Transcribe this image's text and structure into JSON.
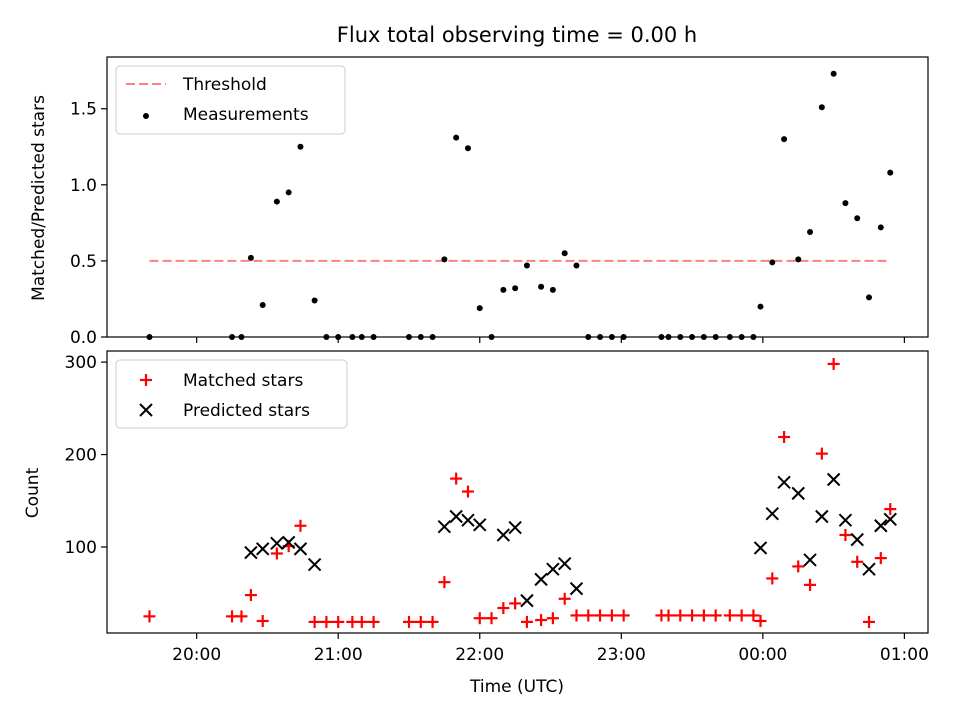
{
  "chart_data": [
    {
      "type": "scatter",
      "title": "Flux total observing time = 0.00 h",
      "ylabel": "Matched/Predicted stars",
      "ylim": [
        0,
        1.84
      ],
      "yticks": [
        "0.0",
        "0.5",
        "1.0",
        "1.5"
      ],
      "legend_placement": "top-left",
      "grid": false,
      "threshold": {
        "name": "Threshold",
        "value": 0.5,
        "x_start": "19:40",
        "x_end": "00:54",
        "color": "#ff8080",
        "style": "dashed"
      },
      "series": [
        {
          "name": "Measurements",
          "color": "#000000",
          "marker": "dot",
          "points": [
            [
              "19:40",
              0.0
            ],
            [
              "20:15",
              0.0
            ],
            [
              "20:19",
              0.0
            ],
            [
              "20:23",
              0.52
            ],
            [
              "20:28",
              0.21
            ],
            [
              "20:34",
              0.89
            ],
            [
              "20:39",
              0.95
            ],
            [
              "20:44",
              1.25
            ],
            [
              "20:50",
              0.24
            ],
            [
              "20:55",
              0.0
            ],
            [
              "21:00",
              0.0
            ],
            [
              "21:06",
              0.0
            ],
            [
              "21:10",
              0.0
            ],
            [
              "21:15",
              0.0
            ],
            [
              "21:30",
              0.0
            ],
            [
              "21:35",
              0.0
            ],
            [
              "21:40",
              0.0
            ],
            [
              "21:45",
              0.51
            ],
            [
              "21:50",
              1.31
            ],
            [
              "21:55",
              1.24
            ],
            [
              "22:00",
              0.19
            ],
            [
              "22:05",
              0.0
            ],
            [
              "22:10",
              0.31
            ],
            [
              "22:15",
              0.32
            ],
            [
              "22:20",
              0.47
            ],
            [
              "22:26",
              0.33
            ],
            [
              "22:31",
              0.31
            ],
            [
              "22:36",
              0.55
            ],
            [
              "22:41",
              0.47
            ],
            [
              "22:46",
              0.0
            ],
            [
              "22:51",
              0.0
            ],
            [
              "22:56",
              0.0
            ],
            [
              "23:01",
              0.0
            ],
            [
              "23:17",
              0.0
            ],
            [
              "23:20",
              0.0
            ],
            [
              "23:25",
              0.0
            ],
            [
              "23:30",
              0.0
            ],
            [
              "23:35",
              0.0
            ],
            [
              "23:40",
              0.0
            ],
            [
              "23:46",
              0.0
            ],
            [
              "23:51",
              0.0
            ],
            [
              "23:56",
              0.0
            ],
            [
              "23:59",
              0.2
            ],
            [
              "00:04",
              0.49
            ],
            [
              "00:09",
              1.3
            ],
            [
              "00:15",
              0.51
            ],
            [
              "00:20",
              0.69
            ],
            [
              "00:25",
              1.51
            ],
            [
              "00:30",
              1.73
            ],
            [
              "00:35",
              0.88
            ],
            [
              "00:40",
              0.78
            ],
            [
              "00:45",
              0.26
            ],
            [
              "00:50",
              0.72
            ],
            [
              "00:54",
              1.08
            ]
          ]
        }
      ]
    },
    {
      "type": "scatter",
      "xlabel": "Time (UTC)",
      "ylabel": "Count",
      "ylim": [
        7,
        312
      ],
      "yticks": [
        "100",
        "200",
        "300"
      ],
      "xticks": [
        "20:00",
        "21:00",
        "22:00",
        "23:00",
        "00:00",
        "01:00"
      ],
      "xlim": [
        "19:22",
        "01:10"
      ],
      "legend_placement": "top-left",
      "grid": false,
      "series": [
        {
          "name": "Matched stars",
          "color": "#ff0000",
          "marker": "plus",
          "points": [
            [
              "19:40",
              25
            ],
            [
              "20:15",
              25
            ],
            [
              "20:19",
              25
            ],
            [
              "20:23",
              48
            ],
            [
              "20:28",
              20
            ],
            [
              "20:34",
              93
            ],
            [
              "20:39",
              101
            ],
            [
              "20:44",
              123
            ],
            [
              "20:50",
              19
            ],
            [
              "20:55",
              19
            ],
            [
              "21:00",
              19
            ],
            [
              "21:06",
              19
            ],
            [
              "21:10",
              19
            ],
            [
              "21:15",
              19
            ],
            [
              "21:30",
              19
            ],
            [
              "21:35",
              19
            ],
            [
              "21:40",
              19
            ],
            [
              "21:45",
              62
            ],
            [
              "21:50",
              174
            ],
            [
              "21:55",
              160
            ],
            [
              "22:00",
              23
            ],
            [
              "22:05",
              23
            ],
            [
              "22:10",
              34
            ],
            [
              "22:15",
              39
            ],
            [
              "22:20",
              19
            ],
            [
              "22:26",
              21
            ],
            [
              "22:31",
              23
            ],
            [
              "22:36",
              44
            ],
            [
              "22:41",
              26
            ],
            [
              "22:46",
              26
            ],
            [
              "22:51",
              26
            ],
            [
              "22:56",
              26
            ],
            [
              "23:01",
              26
            ],
            [
              "23:17",
              26
            ],
            [
              "23:20",
              26
            ],
            [
              "23:25",
              26
            ],
            [
              "23:30",
              26
            ],
            [
              "23:35",
              26
            ],
            [
              "23:40",
              26
            ],
            [
              "23:46",
              26
            ],
            [
              "23:51",
              26
            ],
            [
              "23:56",
              26
            ],
            [
              "23:59",
              20
            ],
            [
              "00:04",
              66
            ],
            [
              "00:09",
              219
            ],
            [
              "00:15",
              79
            ],
            [
              "00:20",
              59
            ],
            [
              "00:25",
              201
            ],
            [
              "00:30",
              298
            ],
            [
              "00:35",
              113
            ],
            [
              "00:40",
              84
            ],
            [
              "00:45",
              19
            ],
            [
              "00:50",
              88
            ],
            [
              "00:54",
              141
            ]
          ]
        },
        {
          "name": "Predicted stars",
          "color": "#000000",
          "marker": "x",
          "points": [
            [
              "20:23",
              94
            ],
            [
              "20:28",
              98
            ],
            [
              "20:34",
              104
            ],
            [
              "20:39",
              105
            ],
            [
              "20:44",
              98
            ],
            [
              "20:50",
              81
            ],
            [
              "21:45",
              122
            ],
            [
              "21:50",
              133
            ],
            [
              "21:55",
              129
            ],
            [
              "22:00",
              124
            ],
            [
              "22:10",
              113
            ],
            [
              "22:15",
              121
            ],
            [
              "22:20",
              42
            ],
            [
              "22:26",
              65
            ],
            [
              "22:31",
              76
            ],
            [
              "22:36",
              82
            ],
            [
              "22:41",
              55
            ],
            [
              "23:59",
              99
            ],
            [
              "00:04",
              136
            ],
            [
              "00:09",
              170
            ],
            [
              "00:15",
              158
            ],
            [
              "00:20",
              86
            ],
            [
              "00:25",
              133
            ],
            [
              "00:30",
              173
            ],
            [
              "00:35",
              129
            ],
            [
              "00:40",
              108
            ],
            [
              "00:45",
              76
            ],
            [
              "00:50",
              123
            ],
            [
              "00:54",
              130
            ]
          ]
        }
      ]
    }
  ]
}
